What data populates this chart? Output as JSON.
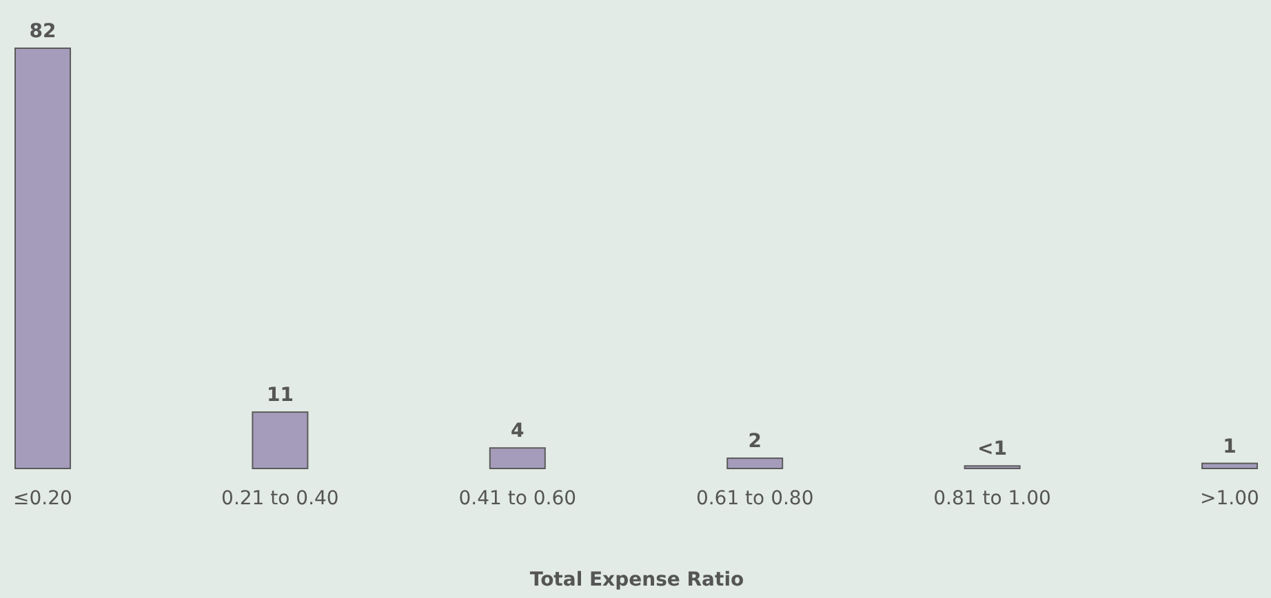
{
  "chart_data": {
    "type": "bar",
    "xlabel": "Total Expense Ratio",
    "categories": [
      "≤0.20",
      "0.21 to 0.40",
      "0.41 to 0.60",
      "0.61 to 0.80",
      "0.81 to 1.00",
      ">1.00"
    ],
    "values": [
      82,
      11,
      4,
      2,
      0.5,
      1
    ],
    "value_labels": [
      "82",
      "11",
      "4",
      "2",
      "<1",
      "1"
    ],
    "color": "#a59cbb"
  }
}
